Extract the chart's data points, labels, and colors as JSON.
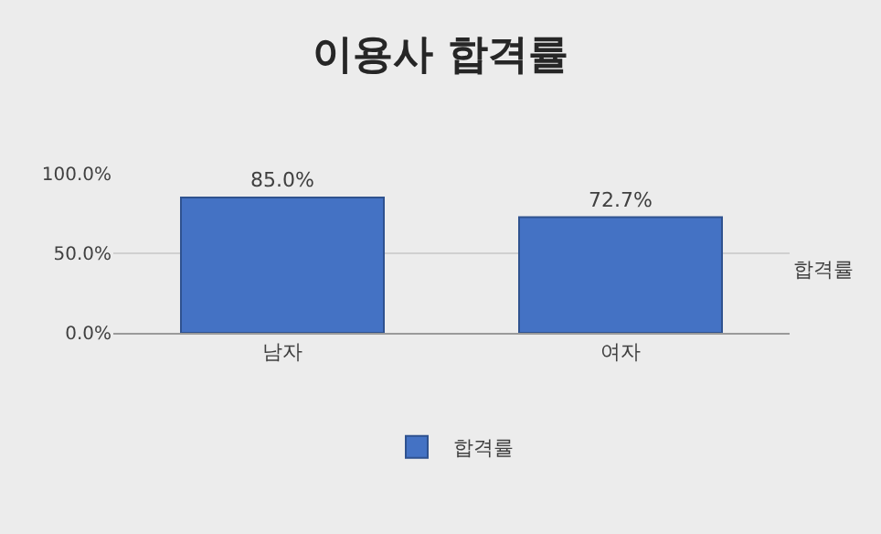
{
  "chart_data": {
    "type": "bar",
    "title": "이용사 합격률",
    "categories": [
      "남자",
      "여자"
    ],
    "series": [
      {
        "name": "합격률",
        "color": "#4472c4",
        "values": [
          85.0,
          72.7
        ],
        "value_labels": [
          "85.0%",
          "72.7%"
        ]
      }
    ],
    "ylim": [
      0,
      100
    ],
    "yticks": [
      {
        "value": 0,
        "label": "0.0%"
      },
      {
        "value": 50,
        "label": "50.0%"
      },
      {
        "value": 100,
        "label": "100.0%"
      }
    ],
    "grid": "y",
    "legend": "bottom",
    "annotations": [
      "합격률"
    ]
  }
}
